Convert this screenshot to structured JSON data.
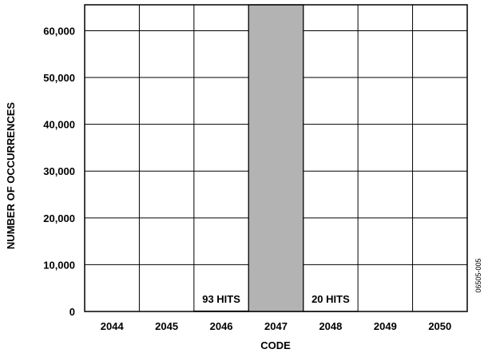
{
  "chart_data": {
    "type": "bar",
    "title": "",
    "xlabel": "CODE",
    "ylabel": "NUMBER OF OCCURRENCES",
    "categories": [
      "2044",
      "2045",
      "2046",
      "2047",
      "2048",
      "2049",
      "2050"
    ],
    "values": [
      0,
      0,
      93,
      65536,
      20,
      0,
      0
    ],
    "ylim": [
      0,
      65536
    ],
    "yticks": [
      0,
      10000,
      20000,
      30000,
      40000,
      50000,
      60000
    ],
    "ytick_labels": [
      "0",
      "10,000",
      "20,000",
      "30,000",
      "40,000",
      "50,000",
      "60,000"
    ],
    "grid": true,
    "bar_color": "#b3b3b3",
    "annotations": [
      {
        "category": "2046",
        "text": "93 HITS"
      },
      {
        "category": "2048",
        "text": "20 HITS"
      }
    ],
    "figure_id": "06505-005"
  }
}
